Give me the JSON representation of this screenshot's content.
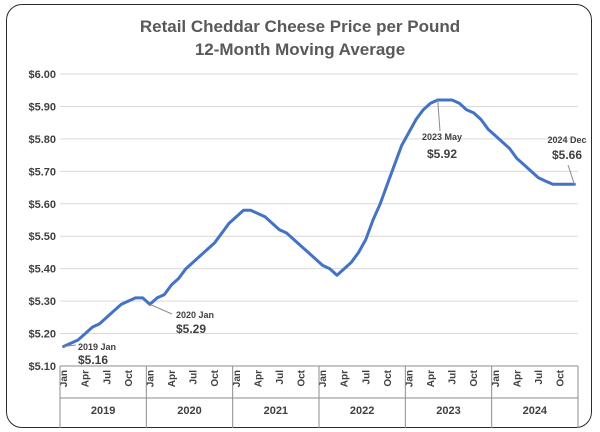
{
  "chart_data": {
    "type": "line",
    "title": "Retail Cheddar Cheese Price per Pound",
    "subtitle": "12-Month Moving Average",
    "xlabel": "",
    "ylabel": "",
    "ylim": [
      5.1,
      6.0
    ],
    "yticks": [
      "$5.10",
      "$5.20",
      "$5.30",
      "$5.40",
      "$5.50",
      "$5.60",
      "$5.70",
      "$5.80",
      "$5.90",
      "$6.00"
    ],
    "month_labels": [
      "Jan",
      "Apr",
      "Jul",
      "Oct"
    ],
    "years": [
      "2019",
      "2020",
      "2021",
      "2022",
      "2023",
      "2024"
    ],
    "grid": "horizontal",
    "series_color": "#4472C4",
    "series": [
      {
        "values": [
          5.16,
          5.17,
          5.18,
          5.2,
          5.22,
          5.23,
          5.25,
          5.27,
          5.29,
          5.3,
          5.31,
          5.31,
          5.29,
          5.31,
          5.32,
          5.35,
          5.37,
          5.4,
          5.42,
          5.44,
          5.46,
          5.48,
          5.51,
          5.54,
          5.56,
          5.58,
          5.58,
          5.57,
          5.56,
          5.54,
          5.52,
          5.51,
          5.49,
          5.47,
          5.45,
          5.43,
          5.41,
          5.4,
          5.38,
          5.4,
          5.42,
          5.45,
          5.49,
          5.55,
          5.6,
          5.66,
          5.72,
          5.78,
          5.82,
          5.86,
          5.89,
          5.91,
          5.92,
          5.92,
          5.92,
          5.91,
          5.89,
          5.88,
          5.86,
          5.83,
          5.81,
          5.79,
          5.77,
          5.74,
          5.72,
          5.7,
          5.68,
          5.67,
          5.66,
          5.66,
          5.66,
          5.66
        ]
      }
    ],
    "annotations": [
      {
        "label": "2019 Jan",
        "value": "$5.16",
        "index": 0
      },
      {
        "label": "2020 Jan",
        "value": "$5.29",
        "index": 12
      },
      {
        "label": "2023 May",
        "value": "$5.92",
        "index": 52
      },
      {
        "label": "2024 Dec",
        "value": "$5.66",
        "index": 71
      }
    ]
  }
}
